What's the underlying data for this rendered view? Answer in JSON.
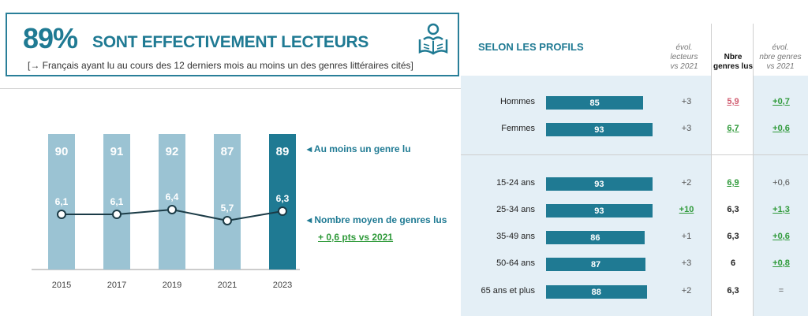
{
  "headline": {
    "percent": "89%",
    "title": "SONT EFFECTIVEMENT LECTEURS",
    "subtitle": "[→ Français ayant lu au cours des 12 derniers mois au moins un des genres littéraires cités]"
  },
  "profiles": {
    "title": "SELON LES PROFILS",
    "col_evol_lecteurs": [
      "évol.",
      "lecteurs",
      "vs 2021"
    ],
    "col_nbre": [
      "Nbre",
      "genres lus"
    ],
    "col_evol_genres": [
      "évol.",
      "nbre genres",
      "vs 2021"
    ],
    "rows": [
      {
        "label": "Hommes",
        "value": 85,
        "value_label": "85",
        "evol": "+3",
        "evol_style": "plain",
        "nbre": "5,9",
        "nbre_style": "red",
        "evol2": "+0,7",
        "evol2_style": "green"
      },
      {
        "label": "Femmes",
        "value": 93,
        "value_label": "93",
        "evol": "+3",
        "evol_style": "plain",
        "nbre": "6,7",
        "nbre_style": "green",
        "evol2": "+0,6",
        "evol2_style": "green"
      },
      {
        "label": "15-24 ans",
        "value": 93,
        "value_label": "93",
        "evol": "+2",
        "evol_style": "plain",
        "nbre": "6,9",
        "nbre_style": "green",
        "evol2": "+0,6",
        "evol2_style": "plain"
      },
      {
        "label": "25-34 ans",
        "value": 93,
        "value_label": "93",
        "evol": "+10",
        "evol_style": "green",
        "nbre": "6,3",
        "nbre_style": "plain",
        "evol2": "+1,3",
        "evol2_style": "green"
      },
      {
        "label": "35-49 ans",
        "value": 86,
        "value_label": "86",
        "evol": "+1",
        "evol_style": "plain",
        "nbre": "6,3",
        "nbre_style": "plain",
        "evol2": "+0,6",
        "evol2_style": "green"
      },
      {
        "label": "50-64 ans",
        "value": 87,
        "value_label": "87",
        "evol": "+3",
        "evol_style": "plain",
        "nbre": "6",
        "nbre_style": "plain",
        "evol2": "+0,8",
        "evol2_style": "green"
      },
      {
        "label": "65 ans et plus",
        "value": 88,
        "value_label": "88",
        "evol": "+2",
        "evol_style": "plain",
        "nbre": "6,3",
        "nbre_style": "plain",
        "evol2": "=",
        "evol2_style": "plain"
      }
    ]
  },
  "legend": {
    "bars": "◂ Au moins un genre lu",
    "line": "◂ Nombre moyen de genres lus",
    "note": "+ 0,6 pts vs 2021"
  },
  "colors": {
    "accent": "#1f7a93",
    "light_bar": "#9bc3d3",
    "green": "#2f9a3a",
    "red": "#d05a6e"
  },
  "chart_data": {
    "type": "bar",
    "categories": [
      "2015",
      "2017",
      "2019",
      "2021",
      "2023"
    ],
    "series": [
      {
        "name": "Au moins un genre lu",
        "values": [
          90,
          91,
          92,
          87,
          89
        ],
        "labels": [
          "90",
          "91",
          "92",
          "87",
          "89"
        ]
      },
      {
        "name": "Nombre moyen de genres lus",
        "type": "line",
        "values": [
          6.1,
          6.1,
          6.4,
          5.7,
          6.3
        ],
        "labels": [
          "6,1",
          "6,1",
          "6,4",
          "5,7",
          "6,3"
        ]
      }
    ],
    "highlight_category": "2023"
  }
}
